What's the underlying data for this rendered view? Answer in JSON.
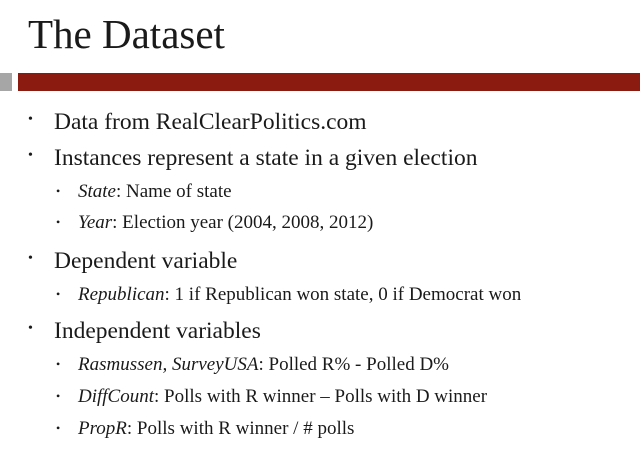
{
  "slide": {
    "title": "The Dataset"
  },
  "bullets": [
    {
      "level": 1,
      "text": "Data from RealClearPolitics.com"
    },
    {
      "level": 1,
      "text": "Instances represent a state in a given election"
    },
    {
      "level": 2,
      "term": "State",
      "rest": ": Name of state"
    },
    {
      "level": 2,
      "term": "Year",
      "rest": ": Election year (2004, 2008, 2012)"
    },
    {
      "level": 1,
      "text": "Dependent variable"
    },
    {
      "level": 2,
      "term": "Republican",
      "rest": ": 1 if Republican won state, 0 if Democrat won"
    },
    {
      "level": 1,
      "text": "Independent variables"
    },
    {
      "level": 2,
      "term": "Rasmussen, SurveyUSA",
      "rest": ": Polled R% - Polled D%"
    },
    {
      "level": 2,
      "term": "DiffCount",
      "rest": ": Polls with R winner – Polls with D winner"
    },
    {
      "level": 2,
      "term": "PropR",
      "rest": ": Polls with R winner / # polls"
    }
  ],
  "colors": {
    "accent_bar": "#8b1a10",
    "side_block": "#a6a6a6",
    "text": "#1a1a1a"
  }
}
